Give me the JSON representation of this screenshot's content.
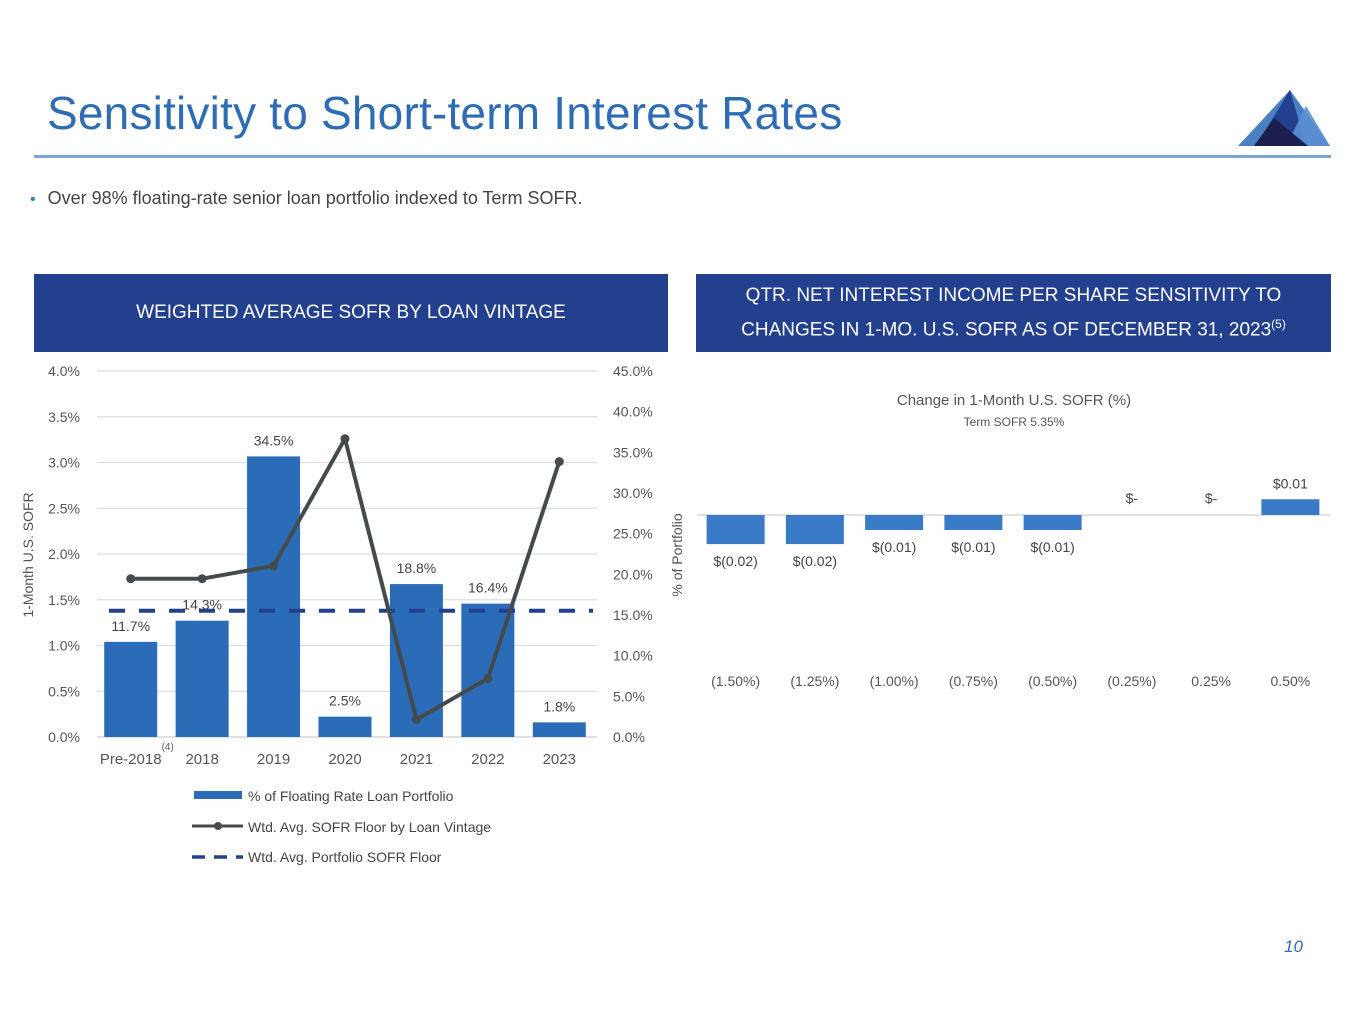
{
  "page": {
    "title": "Sensitivity to Short-term Interest Rates",
    "bullet": "Over 98% floating-rate senior loan portfolio indexed to Term SOFR.",
    "page_number": "10",
    "colors": {
      "title": "#2e6db3",
      "header_bg": "#23408f",
      "bar": "#2b6cb8",
      "line": "#454a4d",
      "dash": "#23408f",
      "bar_right": "#3a7bc8"
    }
  },
  "left_panel": {
    "header": "WEIGHTED AVERAGE SOFR BY LOAN VINTAGE"
  },
  "right_panel": {
    "header_line1": "QTR. NET INTEREST INCOME PER SHARE SENSITIVITY TO",
    "header_line2": "CHANGES IN 1-MO. U.S. SOFR AS OF DECEMBER 31, 2023",
    "header_sup": "(5)"
  },
  "chart_data": [
    {
      "type": "bar+line",
      "title": "WEIGHTED AVERAGE SOFR BY LOAN VINTAGE",
      "categories": [
        "Pre-2018",
        "2018",
        "2019",
        "2020",
        "2021",
        "2022",
        "2023"
      ],
      "category_footnote": {
        "category": "Pre-2018",
        "text": "(4)"
      },
      "ylabel_left": "1-Month U.S. SOFR",
      "ylabel_right": "% of Portfolio",
      "ylim_left": [
        0,
        4.0
      ],
      "ylim_right": [
        0,
        45.0
      ],
      "yticks_left": [
        "0.0%",
        "0.5%",
        "1.0%",
        "1.5%",
        "2.0%",
        "2.5%",
        "3.0%",
        "3.5%",
        "4.0%"
      ],
      "yticks_right": [
        "0.0%",
        "5.0%",
        "10.0%",
        "15.0%",
        "20.0%",
        "25.0%",
        "30.0%",
        "35.0%",
        "40.0%",
        "45.0%"
      ],
      "grid": true,
      "legend_position": "bottom",
      "series": [
        {
          "name": "% of Floating Rate Loan Portfolio",
          "kind": "bar",
          "axis": "right",
          "values": [
            11.7,
            14.3,
            34.5,
            2.5,
            18.8,
            16.4,
            1.8
          ],
          "labels": [
            "11.7%",
            "14.3%",
            "34.5%",
            "2.5%",
            "18.8%",
            "16.4%",
            "1.8%"
          ]
        },
        {
          "name": "Wtd. Avg. SOFR Floor by Loan Vintage",
          "kind": "line",
          "axis": "left",
          "values": [
            1.73,
            1.73,
            1.87,
            3.26,
            0.19,
            0.64,
            3.01
          ]
        },
        {
          "name": "Wtd. Avg. Portfolio SOFR Floor",
          "kind": "dashed-line",
          "axis": "left",
          "value": 1.38
        }
      ]
    },
    {
      "type": "bar",
      "title": "Change in 1-Month U.S. SOFR (%)",
      "subtitle": "Term SOFR 5.35%",
      "categories": [
        "(1.50%)",
        "(1.25%)",
        "(1.00%)",
        "(0.75%)",
        "(0.50%)",
        "(0.25%)",
        "0.25%",
        "0.50%"
      ],
      "values": [
        -0.02,
        -0.02,
        -0.01,
        -0.01,
        -0.01,
        0,
        0,
        0.01
      ],
      "labels": [
        "$(0.02)",
        "$(0.02)",
        "$(0.01)",
        "$(0.01)",
        "$(0.01)",
        "$-",
        "$-",
        "$0.01"
      ],
      "ylim": [
        -0.05,
        0.02
      ],
      "grid": false
    }
  ]
}
